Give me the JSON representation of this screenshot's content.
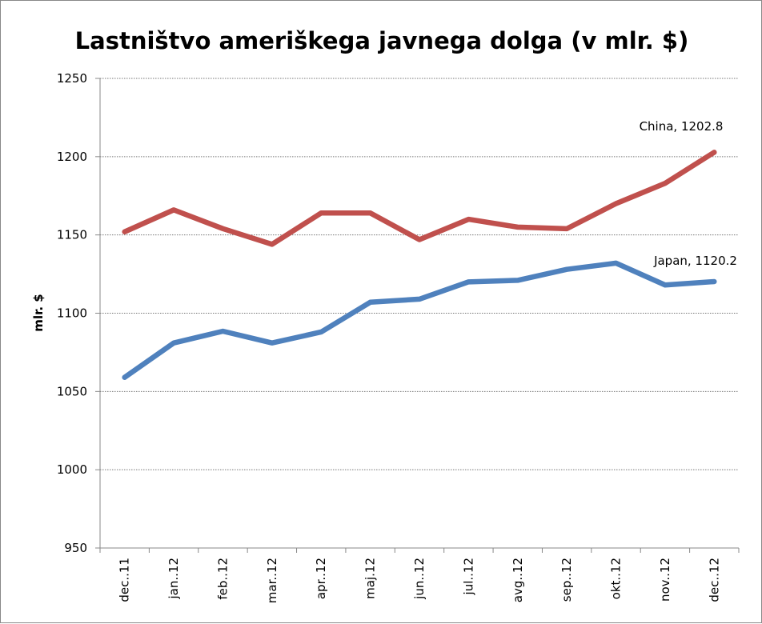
{
  "chart_data": {
    "type": "line",
    "title": "Lastništvo ameriškega javnega dolga (v mlr. $)",
    "xlabel": "",
    "ylabel": "mlr. $",
    "ylim": [
      950,
      1250
    ],
    "yticks": [
      950,
      1000,
      1050,
      1100,
      1150,
      1200,
      1250
    ],
    "grid": true,
    "legend": "none",
    "categories": [
      "dec..11",
      "jan..12",
      "feb..12",
      "mar..12",
      "apr..12",
      "maj.12",
      "jun..12",
      "jul..12",
      "avg..12",
      "sep..12",
      "okt..12",
      "nov..12",
      "dec..12"
    ],
    "series": [
      {
        "name": "China",
        "color": "#C0504D",
        "values": [
          1152,
          1166,
          1154,
          1144,
          1164,
          1164,
          1147,
          1160,
          1155,
          1154,
          1170,
          1183,
          1202.8
        ],
        "end_label": "China, 1202.8"
      },
      {
        "name": "Japan",
        "color": "#4F81BD",
        "values": [
          1059,
          1081,
          1088.5,
          1081,
          1088,
          1107,
          1109,
          1120,
          1121,
          1128,
          1132,
          1118,
          1120.2
        ],
        "end_label": "Japan, 1120.2"
      }
    ]
  }
}
